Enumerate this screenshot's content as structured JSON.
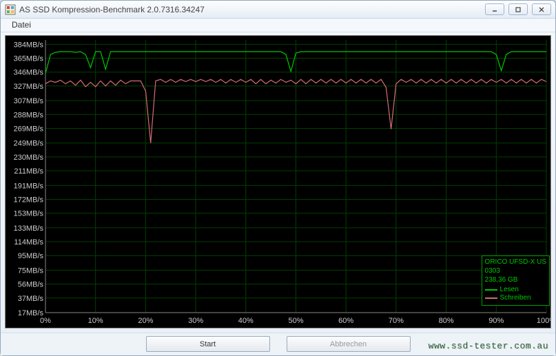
{
  "window": {
    "title": "AS SSD Kompression-Benchmark 2.0.7316.34247",
    "menu": {
      "file": "Datei"
    },
    "buttons": {
      "start": "Start",
      "cancel": "Abbrechen"
    }
  },
  "watermark": "www.ssd-tester.com.au",
  "legend": {
    "device": "ORICO UFSD-X US",
    "device_sub": "0303",
    "capacity": "238,36 GB",
    "series": [
      {
        "label": "Lesen",
        "color": "#00c800"
      },
      {
        "label": "Schreiben",
        "color": "#d86c74"
      }
    ]
  },
  "chart": {
    "type": "line",
    "background_color": "#000000",
    "grid_color": "#004000",
    "axis_label_color": "#cccccc",
    "label_fontsize": 11,
    "xlim": [
      0,
      100
    ],
    "ylim": [
      17,
      390
    ],
    "y_ticks": [
      17,
      37,
      56,
      75,
      95,
      114,
      133,
      153,
      172,
      191,
      211,
      230,
      249,
      269,
      288,
      307,
      327,
      346,
      365,
      384
    ],
    "y_tick_unit": "MB/s",
    "x_ticks": [
      0,
      10,
      20,
      30,
      40,
      50,
      60,
      70,
      80,
      90,
      100
    ],
    "x_tick_suffix": "%",
    "line_width": 1.2,
    "series": [
      {
        "name": "Lesen",
        "color": "#00c800",
        "points": [
          [
            0,
            344
          ],
          [
            1,
            370
          ],
          [
            2,
            373
          ],
          [
            3,
            374
          ],
          [
            4,
            374
          ],
          [
            5,
            374
          ],
          [
            6,
            373
          ],
          [
            7,
            374
          ],
          [
            8,
            370
          ],
          [
            9,
            352
          ],
          [
            10,
            374
          ],
          [
            11,
            374
          ],
          [
            12,
            350
          ],
          [
            13,
            374
          ],
          [
            14,
            374
          ],
          [
            15,
            374
          ],
          [
            16,
            374
          ],
          [
            17,
            374
          ],
          [
            18,
            374
          ],
          [
            19,
            374
          ],
          [
            20,
            374
          ],
          [
            21,
            374
          ],
          [
            22,
            374
          ],
          [
            23,
            374
          ],
          [
            24,
            374
          ],
          [
            25,
            374
          ],
          [
            26,
            374
          ],
          [
            27,
            374
          ],
          [
            28,
            374
          ],
          [
            29,
            374
          ],
          [
            30,
            374
          ],
          [
            31,
            374
          ],
          [
            32,
            374
          ],
          [
            33,
            374
          ],
          [
            34,
            374
          ],
          [
            35,
            374
          ],
          [
            36,
            374
          ],
          [
            37,
            374
          ],
          [
            38,
            374
          ],
          [
            39,
            374
          ],
          [
            40,
            374
          ],
          [
            41,
            374
          ],
          [
            42,
            374
          ],
          [
            43,
            374
          ],
          [
            44,
            374
          ],
          [
            45,
            374
          ],
          [
            46,
            374
          ],
          [
            47,
            374
          ],
          [
            48,
            370
          ],
          [
            49,
            347
          ],
          [
            50,
            372
          ],
          [
            51,
            374
          ],
          [
            52,
            374
          ],
          [
            53,
            374
          ],
          [
            54,
            374
          ],
          [
            55,
            374
          ],
          [
            56,
            374
          ],
          [
            57,
            374
          ],
          [
            58,
            374
          ],
          [
            59,
            374
          ],
          [
            60,
            374
          ],
          [
            61,
            374
          ],
          [
            62,
            374
          ],
          [
            63,
            374
          ],
          [
            64,
            374
          ],
          [
            65,
            374
          ],
          [
            66,
            374
          ],
          [
            67,
            374
          ],
          [
            68,
            374
          ],
          [
            69,
            374
          ],
          [
            70,
            374
          ],
          [
            71,
            374
          ],
          [
            72,
            374
          ],
          [
            73,
            374
          ],
          [
            74,
            374
          ],
          [
            75,
            374
          ],
          [
            76,
            374
          ],
          [
            77,
            374
          ],
          [
            78,
            374
          ],
          [
            79,
            374
          ],
          [
            80,
            374
          ],
          [
            81,
            374
          ],
          [
            82,
            374
          ],
          [
            83,
            374
          ],
          [
            84,
            374
          ],
          [
            85,
            374
          ],
          [
            86,
            374
          ],
          [
            87,
            374
          ],
          [
            88,
            374
          ],
          [
            89,
            374
          ],
          [
            90,
            370
          ],
          [
            91,
            348
          ],
          [
            92,
            370
          ],
          [
            93,
            374
          ],
          [
            94,
            374
          ],
          [
            95,
            374
          ],
          [
            96,
            374
          ],
          [
            97,
            374
          ],
          [
            98,
            374
          ],
          [
            99,
            374
          ],
          [
            100,
            374
          ]
        ]
      },
      {
        "name": "Schreiben",
        "color": "#d86c74",
        "points": [
          [
            0,
            330
          ],
          [
            1,
            334
          ],
          [
            2,
            332
          ],
          [
            3,
            335
          ],
          [
            4,
            330
          ],
          [
            5,
            334
          ],
          [
            6,
            328
          ],
          [
            7,
            335
          ],
          [
            8,
            326
          ],
          [
            9,
            332
          ],
          [
            10,
            326
          ],
          [
            11,
            334
          ],
          [
            12,
            327
          ],
          [
            13,
            334
          ],
          [
            14,
            328
          ],
          [
            15,
            335
          ],
          [
            16,
            330
          ],
          [
            17,
            334
          ],
          [
            18,
            334
          ],
          [
            19,
            334
          ],
          [
            20,
            320
          ],
          [
            21,
            249
          ],
          [
            22,
            334
          ],
          [
            23,
            336
          ],
          [
            24,
            332
          ],
          [
            25,
            336
          ],
          [
            26,
            332
          ],
          [
            27,
            336
          ],
          [
            28,
            333
          ],
          [
            29,
            336
          ],
          [
            30,
            333
          ],
          [
            31,
            336
          ],
          [
            32,
            333
          ],
          [
            33,
            336
          ],
          [
            34,
            332
          ],
          [
            35,
            336
          ],
          [
            36,
            331
          ],
          [
            37,
            336
          ],
          [
            38,
            332
          ],
          [
            39,
            336
          ],
          [
            40,
            332
          ],
          [
            41,
            336
          ],
          [
            42,
            330
          ],
          [
            43,
            336
          ],
          [
            44,
            330
          ],
          [
            45,
            335
          ],
          [
            46,
            331
          ],
          [
            47,
            336
          ],
          [
            48,
            332
          ],
          [
            49,
            335
          ],
          [
            50,
            330
          ],
          [
            51,
            336
          ],
          [
            52,
            330
          ],
          [
            53,
            336
          ],
          [
            54,
            331
          ],
          [
            55,
            336
          ],
          [
            56,
            331
          ],
          [
            57,
            336
          ],
          [
            58,
            331
          ],
          [
            59,
            336
          ],
          [
            60,
            331
          ],
          [
            61,
            336
          ],
          [
            62,
            331
          ],
          [
            63,
            336
          ],
          [
            64,
            331
          ],
          [
            65,
            336
          ],
          [
            66,
            331
          ],
          [
            67,
            336
          ],
          [
            68,
            325
          ],
          [
            69,
            268
          ],
          [
            70,
            330
          ],
          [
            71,
            336
          ],
          [
            72,
            332
          ],
          [
            73,
            336
          ],
          [
            74,
            331
          ],
          [
            75,
            336
          ],
          [
            76,
            331
          ],
          [
            77,
            336
          ],
          [
            78,
            331
          ],
          [
            79,
            336
          ],
          [
            80,
            331
          ],
          [
            81,
            336
          ],
          [
            82,
            331
          ],
          [
            83,
            336
          ],
          [
            84,
            331
          ],
          [
            85,
            336
          ],
          [
            86,
            331
          ],
          [
            87,
            336
          ],
          [
            88,
            331
          ],
          [
            89,
            336
          ],
          [
            90,
            332
          ],
          [
            91,
            336
          ],
          [
            92,
            331
          ],
          [
            93,
            336
          ],
          [
            94,
            331
          ],
          [
            95,
            336
          ],
          [
            96,
            331
          ],
          [
            97,
            336
          ],
          [
            98,
            331
          ],
          [
            99,
            336
          ],
          [
            100,
            333
          ]
        ]
      }
    ]
  }
}
